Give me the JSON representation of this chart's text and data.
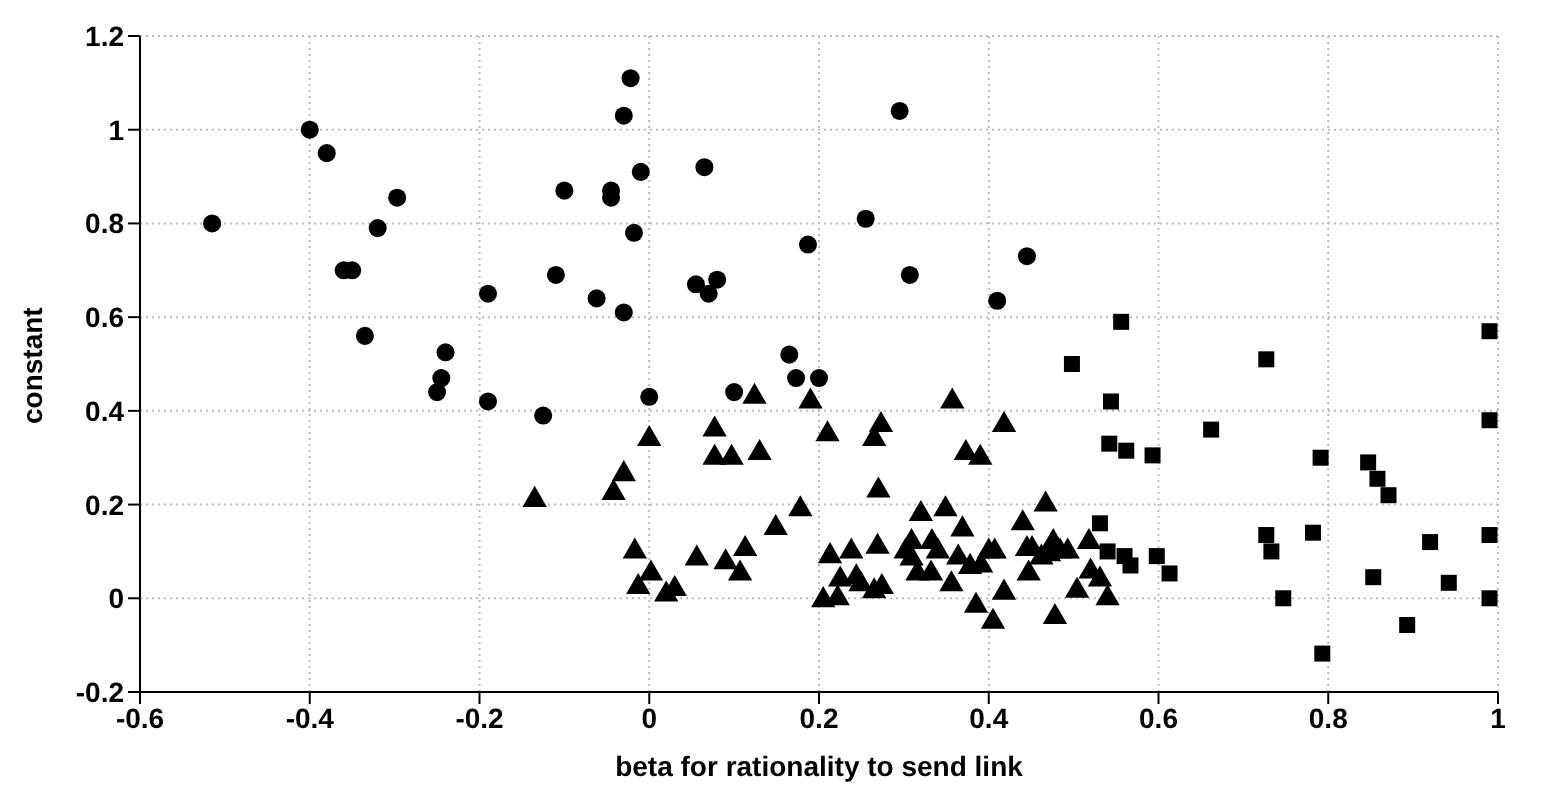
{
  "chart_data": {
    "type": "scatter",
    "xlabel": "beta for rationality to send link",
    "ylabel": "constant",
    "xlim": [
      -0.6,
      1
    ],
    "ylim": [
      -0.2,
      1.2
    ],
    "xticks": [
      -0.6,
      -0.4,
      -0.2,
      0,
      0.2,
      0.4,
      0.6,
      0.8,
      1
    ],
    "yticks": [
      -0.2,
      0,
      0.2,
      0.4,
      0.6,
      0.8,
      1,
      1.2
    ],
    "grid": true,
    "series": [
      {
        "color": "#000000",
        "marker": "circle",
        "x": [
          -0.515,
          -0.4,
          -0.38,
          -0.32,
          -0.297,
          -0.36,
          -0.35,
          -0.335,
          -0.24,
          -0.245,
          -0.25,
          -0.19,
          -0.19,
          -0.125,
          -0.1,
          -0.11,
          -0.062,
          -0.022,
          -0.03,
          -0.01,
          -0.045,
          -0.045,
          -0.018,
          -0.03,
          0.065,
          0.055,
          0.08,
          0.07,
          0.295,
          0.255,
          0.187,
          0.307,
          0.165,
          0.173,
          0.2,
          0.1,
          0.0,
          0.41,
          0.445
        ],
        "values": [
          0.8,
          1.0,
          0.95,
          0.79,
          0.855,
          0.7,
          0.7,
          0.56,
          0.525,
          0.47,
          0.44,
          0.65,
          0.42,
          0.39,
          0.87,
          0.69,
          0.64,
          1.11,
          1.03,
          0.91,
          0.87,
          0.855,
          0.78,
          0.61,
          0.92,
          0.67,
          0.68,
          0.65,
          1.04,
          0.81,
          0.755,
          0.69,
          0.52,
          0.47,
          0.47,
          0.44,
          0.43,
          0.635,
          0.73
        ]
      },
      {
        "color": "#000000",
        "marker": "triangle",
        "x": [
          0.124,
          0.19,
          0.077,
          0.0,
          0.077,
          0.097,
          0.13,
          0.21,
          0.273,
          0.265,
          0.357,
          0.373,
          0.39,
          0.418,
          -0.03,
          -0.042,
          -0.135,
          0.27,
          0.178,
          0.149,
          0.32,
          0.349,
          0.467,
          0.44,
          0.369,
          -0.017,
          0.002,
          -0.013,
          0.02,
          0.03,
          0.056,
          0.09,
          0.107,
          0.113,
          0.205,
          0.222,
          0.213,
          0.225,
          0.238,
          0.244,
          0.249,
          0.265,
          0.274,
          0.269,
          0.302,
          0.309,
          0.309,
          0.316,
          0.332,
          0.333,
          0.34,
          0.356,
          0.364,
          0.378,
          0.391,
          0.4,
          0.407,
          0.418,
          0.405,
          0.385,
          0.445,
          0.447,
          0.451,
          0.462,
          0.471,
          0.476,
          0.484,
          0.478,
          0.493,
          0.504,
          0.518,
          0.52,
          0.531,
          0.54
        ],
        "values": [
          0.43,
          0.42,
          0.36,
          0.34,
          0.3,
          0.3,
          0.31,
          0.35,
          0.37,
          0.34,
          0.42,
          0.31,
          0.3,
          0.37,
          0.265,
          0.225,
          0.21,
          0.23,
          0.19,
          0.15,
          0.18,
          0.19,
          0.2,
          0.16,
          0.147,
          0.1,
          0.053,
          0.024,
          0.008,
          0.02,
          0.085,
          0.077,
          0.053,
          0.105,
          -0.004,
          0.0,
          0.09,
          0.04,
          0.1,
          0.045,
          0.03,
          0.015,
          0.024,
          0.11,
          0.1,
          0.12,
          0.085,
          0.053,
          0.053,
          0.12,
          0.1,
          0.03,
          0.087,
          0.067,
          0.07,
          0.1,
          0.1,
          0.012,
          -0.05,
          -0.016,
          0.105,
          0.053,
          0.105,
          0.087,
          0.094,
          0.12,
          0.1,
          -0.04,
          0.1,
          0.016,
          0.12,
          0.057,
          0.04,
          0.0
        ]
      },
      {
        "color": "#000000",
        "marker": "square",
        "x": [
          0.556,
          0.498,
          0.727,
          0.544,
          0.662,
          0.542,
          0.562,
          0.593,
          0.791,
          0.847,
          0.858,
          0.871,
          0.531,
          0.727,
          0.733,
          0.782,
          0.92,
          0.54,
          0.56,
          0.567,
          0.598,
          0.613,
          0.853,
          0.942,
          0.747,
          0.893,
          0.793,
          0.99,
          0.99,
          0.99,
          0.99
        ],
        "values": [
          0.59,
          0.5,
          0.51,
          0.42,
          0.36,
          0.33,
          0.315,
          0.305,
          0.3,
          0.29,
          0.255,
          0.22,
          0.16,
          0.135,
          0.1,
          0.14,
          0.12,
          0.1,
          0.09,
          0.07,
          0.09,
          0.053,
          0.045,
          0.033,
          0.0,
          -0.057,
          -0.118,
          0.57,
          0.38,
          0.135,
          0.0
        ]
      }
    ]
  }
}
